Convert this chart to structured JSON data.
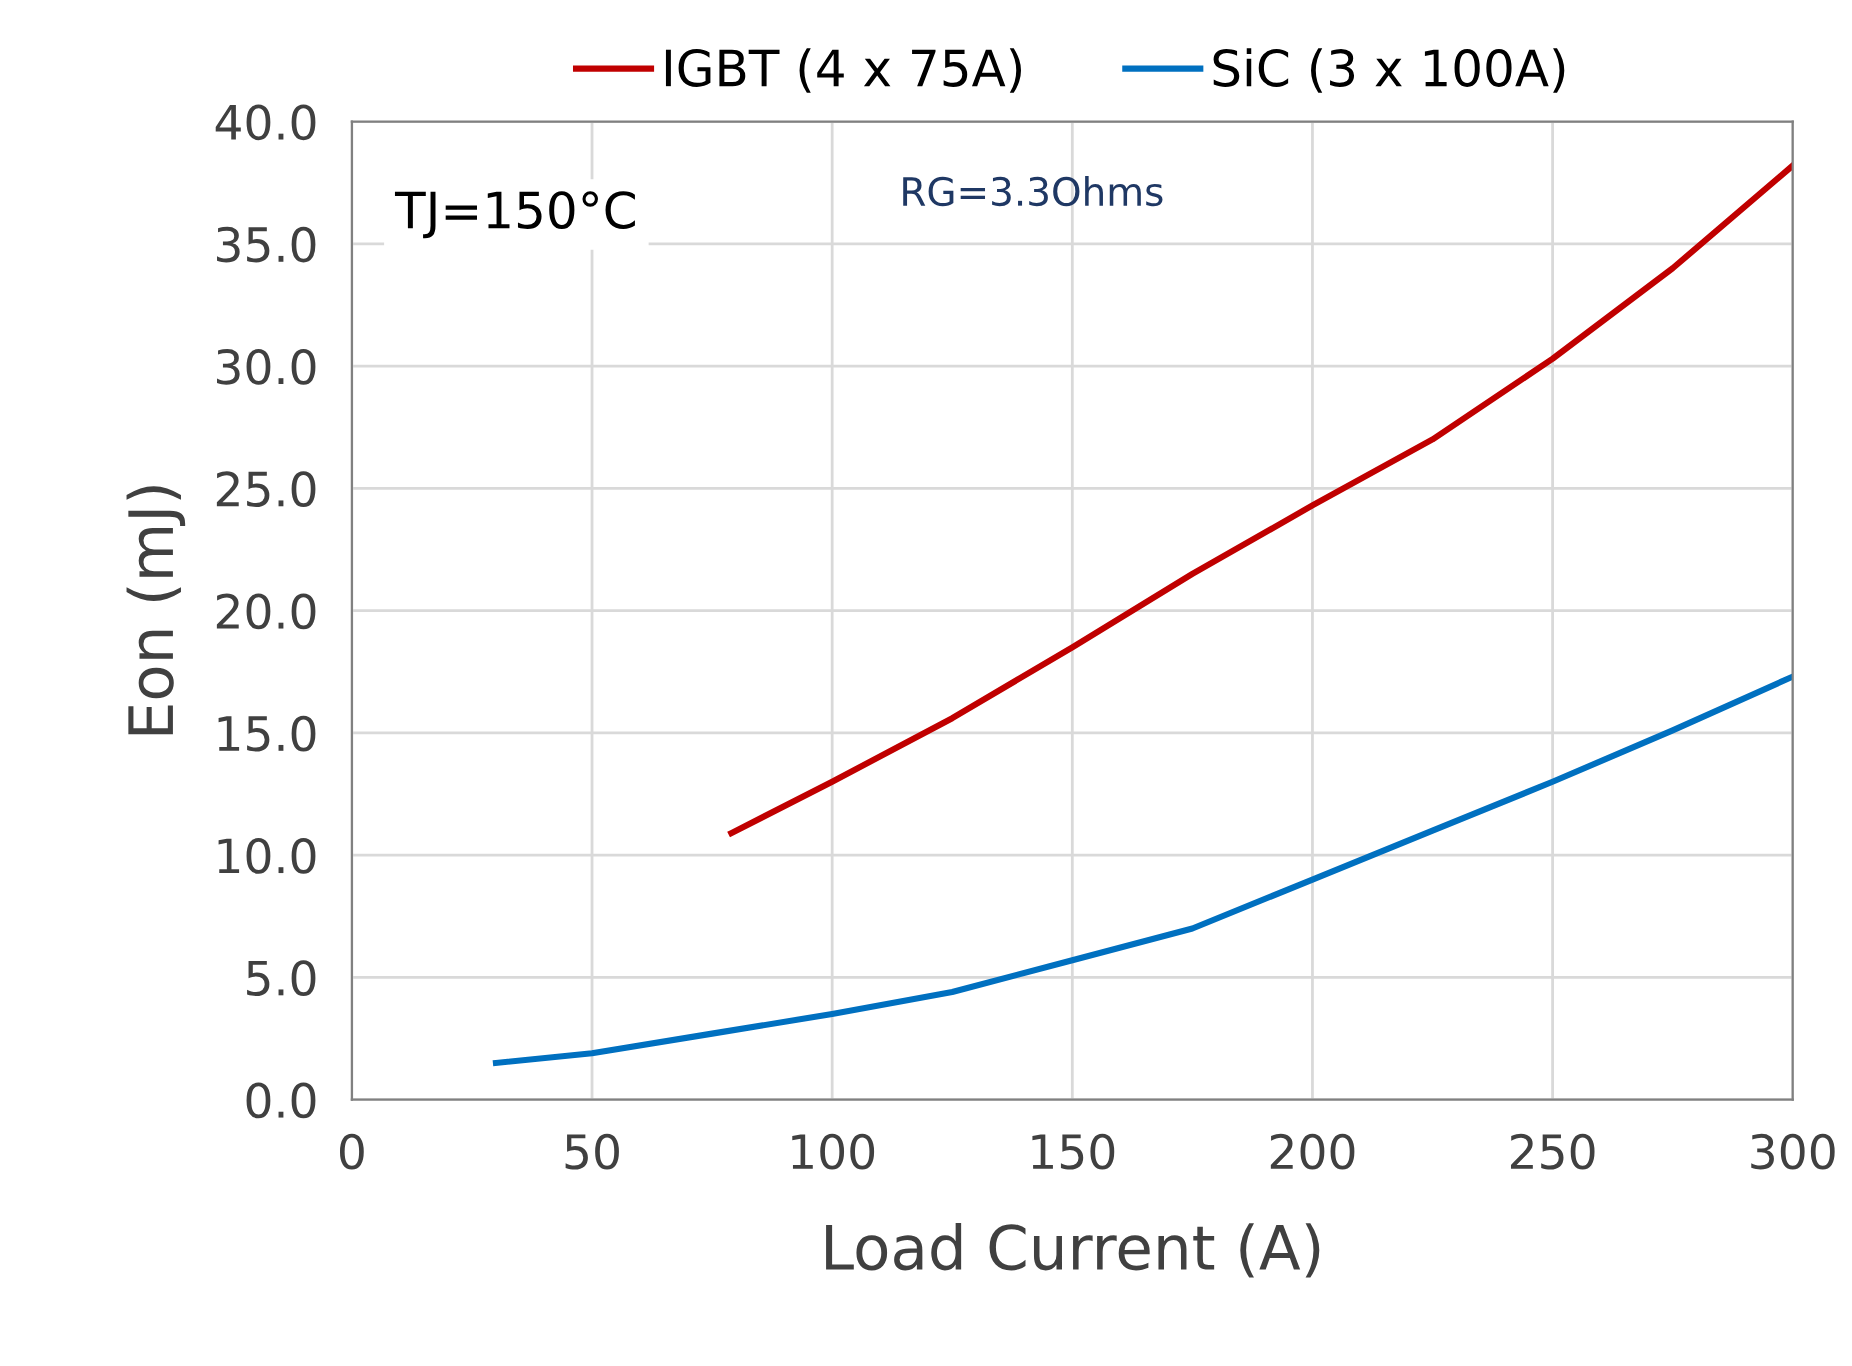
{
  "chart_data": {
    "type": "line",
    "xlabel": "Load Current (A)",
    "ylabel": "Eon (mJ)",
    "xlim": [
      0,
      300
    ],
    "xticks": [
      0,
      50,
      100,
      150,
      200,
      250,
      300
    ],
    "ylim": [
      0,
      40
    ],
    "yticks": [
      {
        "value": 0,
        "label": "0.0"
      },
      {
        "value": 5,
        "label": "5.0"
      },
      {
        "value": 10,
        "label": "10.0"
      },
      {
        "value": 15,
        "label": "15.0"
      },
      {
        "value": 20,
        "label": "20.0"
      },
      {
        "value": 25,
        "label": "25.0"
      },
      {
        "value": 30,
        "label": "30.0"
      },
      {
        "value": 35,
        "label": "35.0"
      },
      {
        "value": 40,
        "label": "40.0"
      }
    ],
    "grid": true,
    "legend": "top",
    "marker": "none",
    "line_style": "solid",
    "annotations": [
      "TJ=150°C",
      "RG=3.3Ohms"
    ],
    "series": [
      {
        "name": "IGBT (4 x 75A)",
        "color": "#c00000",
        "x": [
          79,
          100,
          125,
          150,
          175,
          200,
          225,
          250,
          275,
          300
        ],
        "values": [
          10.9,
          13.0,
          15.6,
          18.5,
          21.5,
          24.3,
          27.0,
          30.3,
          34.0,
          38.2
        ]
      },
      {
        "name": "SiC (3 x 100A)",
        "color": "#0070c0",
        "x": [
          30,
          50,
          75,
          100,
          125,
          150,
          175,
          200,
          225,
          250,
          275,
          300
        ],
        "values": [
          1.5,
          1.9,
          2.7,
          3.5,
          4.4,
          5.7,
          7.0,
          9.0,
          11.0,
          13.0,
          15.1,
          17.3
        ]
      }
    ]
  }
}
